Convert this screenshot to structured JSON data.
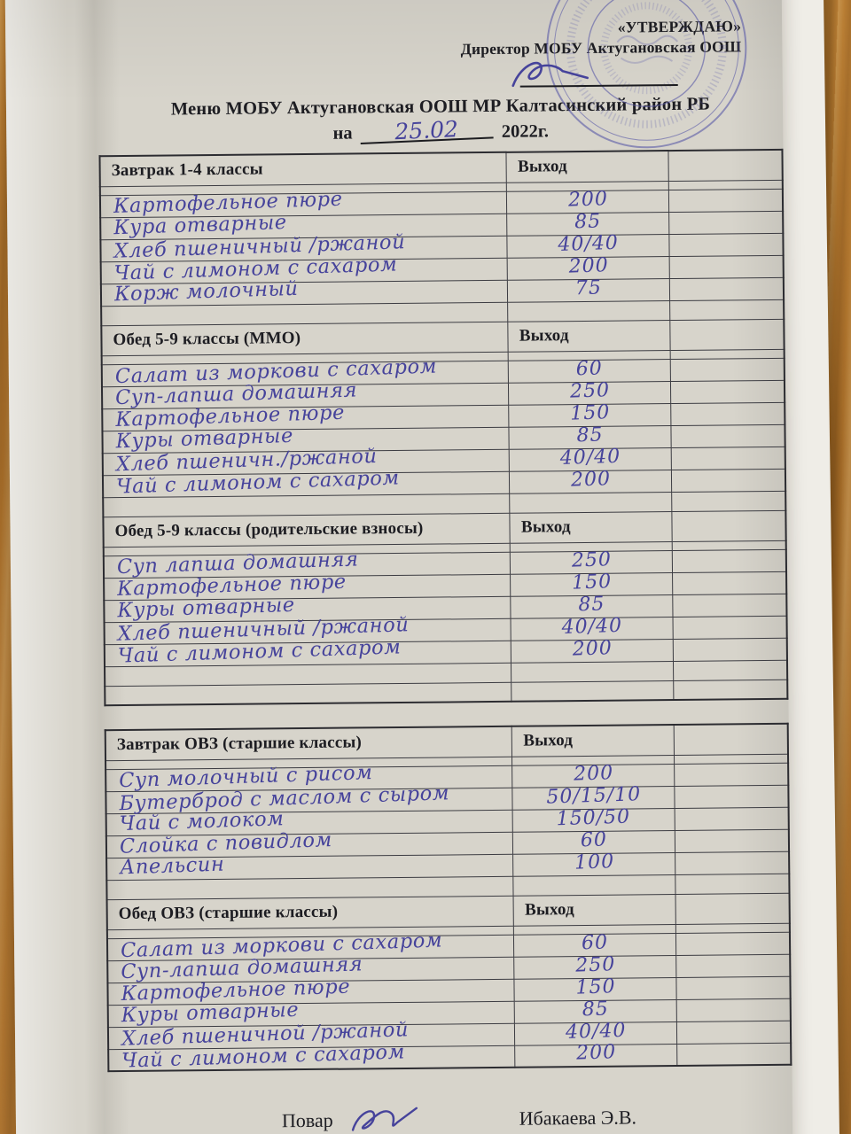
{
  "approval": {
    "line1": "«УТВЕРЖДАЮ»",
    "line2": "Директор МОБУ Актугановская ООШ"
  },
  "title": {
    "line1": "Меню МОБУ Актугановская ООШ МР Калтасинский район РБ",
    "date_prefix": "на",
    "date_value": "25.02",
    "date_suffix": "2022г."
  },
  "output_column_header": "Выход",
  "menu_tables": [
    {
      "sections": [
        {
          "header": "Завтрак 1-4 классы",
          "items": [
            {
              "dish": "Картофельное пюре",
              "output": "200"
            },
            {
              "dish": "Кура отварные",
              "output": "85"
            },
            {
              "dish": "Хлеб пшеничный /ржаной",
              "output": "40/40"
            },
            {
              "dish": "Чай с лимоном с сахаром",
              "output": "200"
            },
            {
              "dish": "Корж молочный",
              "output": "75"
            }
          ],
          "trailing_empty_rows": 1
        },
        {
          "header": "Обед 5-9 классы (ММО)",
          "items": [
            {
              "dish": "Салат из моркови с сахаром",
              "output": "60"
            },
            {
              "dish": "Суп-лапша домашняя",
              "output": "250"
            },
            {
              "dish": "Картофельное пюре",
              "output": "150"
            },
            {
              "dish": "Куры отварные",
              "output": "85"
            },
            {
              "dish": "Хлеб пшеничн./ржаной",
              "output": "40/40"
            },
            {
              "dish": "Чай с лимоном с сахаром",
              "output": "200"
            }
          ],
          "trailing_empty_rows": 1
        },
        {
          "header": "Обед 5-9 классы (родительские взносы)",
          "items": [
            {
              "dish": "Суп лапша домашняя",
              "output": "250"
            },
            {
              "dish": "Картофельное пюре",
              "output": "150"
            },
            {
              "dish": "Куры отварные",
              "output": "85"
            },
            {
              "dish": "Хлеб пшеничный /ржаной",
              "output": "40/40"
            },
            {
              "dish": "Чай с лимоном с сахаром",
              "output": "200"
            }
          ],
          "trailing_empty_rows": 2
        }
      ]
    },
    {
      "sections": [
        {
          "header": "Завтрак ОВЗ (старшие классы)",
          "items": [
            {
              "dish": "Суп молочный с рисом",
              "output": "200"
            },
            {
              "dish": "Бутерброд с маслом с сыром",
              "output": "50/15/10"
            },
            {
              "dish": "Чай с молоком",
              "output": "150/50"
            },
            {
              "dish": "Слойка с повидлом",
              "output": "60"
            },
            {
              "dish": "Апельсин",
              "output": "100"
            }
          ],
          "trailing_empty_rows": 1
        },
        {
          "header": "Обед ОВЗ (старшие классы)",
          "items": [
            {
              "dish": "Салат из моркови с сахаром",
              "output": "60"
            },
            {
              "dish": "Суп-лапша домашняя",
              "output": "250"
            },
            {
              "dish": "Картофельное пюре",
              "output": "150"
            },
            {
              "dish": "Куры отварные",
              "output": "85"
            },
            {
              "dish": "Хлеб пшеничной /ржаной",
              "output": "40/40"
            },
            {
              "dish": "Чай с лимоном с сахаром",
              "output": "200"
            }
          ],
          "trailing_empty_rows": 0
        }
      ]
    }
  ],
  "footer": {
    "role_label": "Повар",
    "signed_name": "Ибакаева Э.В."
  },
  "colors": {
    "handwriting_ink": "#46439b",
    "printed_text": "#1d1d22",
    "stamp_blue": "#5a5aa8",
    "paper": "#d7d4cb",
    "wood": "#a9702b"
  }
}
